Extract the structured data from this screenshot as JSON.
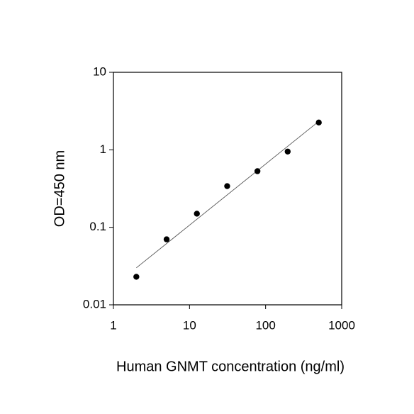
{
  "chart_data": {
    "type": "scatter",
    "x_label": "Human GNMT concentration (ng/ml)",
    "y_label": "OD=450 nm",
    "x": [
      2,
      5,
      12.5,
      31.25,
      78.125,
      195,
      500
    ],
    "values": [
      0.023,
      0.07,
      0.15,
      0.34,
      0.53,
      0.95,
      2.25
    ],
    "color": "#000000",
    "fit_line": {
      "x": [
        2,
        500
      ],
      "values": [
        0.03,
        2.33
      ],
      "color": "#555555"
    },
    "xlim": [
      1,
      1000
    ],
    "ylim": [
      0.01,
      10
    ],
    "xticks": [
      1,
      10,
      100,
      1000
    ],
    "yticks": [
      0.01,
      0.1,
      1,
      10
    ],
    "xscale": "log",
    "yscale": "log",
    "grid": false
  }
}
